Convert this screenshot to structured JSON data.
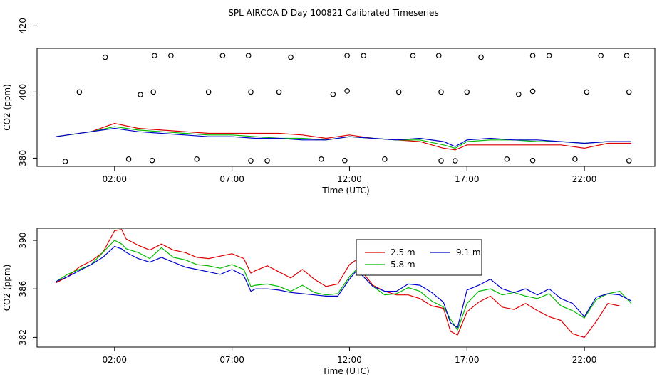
{
  "title": "SPL AIRCOA D  Day 100821  Calibrated Timeseries",
  "colors": {
    "red": "#dd0000",
    "green": "#00bb00",
    "blue": "#0000cc",
    "axis": "#000000"
  },
  "chart_data": [
    {
      "type": "scatter+line",
      "xlabel": "Time (UTC)",
      "ylabel": "CO2 (ppm)",
      "xlim": [
        -1.3,
        25.0
      ],
      "ylim": [
        377.5,
        413.2
      ],
      "x_ticks": [
        2,
        7,
        12,
        17,
        22
      ],
      "x_tick_labels": [
        "02:00",
        "07:00",
        "12:00",
        "17:00",
        "22:00"
      ],
      "y_ticks": [
        380,
        400,
        420
      ],
      "y_tick_labels": [
        "380",
        "400",
        "420"
      ],
      "calibration_points": [
        {
          "x": -0.1,
          "y": 379.0
        },
        {
          "x": 0.5,
          "y": 400.0
        },
        {
          "x": 1.6,
          "y": 410.5
        },
        {
          "x": 2.6,
          "y": 379.7
        },
        {
          "x": 3.1,
          "y": 399.2
        },
        {
          "x": 3.6,
          "y": 379.3
        },
        {
          "x": 3.65,
          "y": 400.0
        },
        {
          "x": 3.7,
          "y": 411.0
        },
        {
          "x": 4.4,
          "y": 411.0
        },
        {
          "x": 5.5,
          "y": 379.7
        },
        {
          "x": 6.0,
          "y": 400.0
        },
        {
          "x": 6.6,
          "y": 411.0
        },
        {
          "x": 7.7,
          "y": 411.0
        },
        {
          "x": 7.8,
          "y": 379.2
        },
        {
          "x": 7.8,
          "y": 400.0
        },
        {
          "x": 8.5,
          "y": 379.2
        },
        {
          "x": 9.0,
          "y": 400.0
        },
        {
          "x": 9.5,
          "y": 410.5
        },
        {
          "x": 10.8,
          "y": 379.7
        },
        {
          "x": 11.3,
          "y": 399.3
        },
        {
          "x": 11.8,
          "y": 379.3
        },
        {
          "x": 11.9,
          "y": 400.3
        },
        {
          "x": 11.9,
          "y": 411.0
        },
        {
          "x": 12.6,
          "y": 411.0
        },
        {
          "x": 13.5,
          "y": 379.7
        },
        {
          "x": 14.1,
          "y": 400.0
        },
        {
          "x": 14.7,
          "y": 411.0
        },
        {
          "x": 15.8,
          "y": 411.0
        },
        {
          "x": 15.9,
          "y": 379.2
        },
        {
          "x": 15.9,
          "y": 400.0
        },
        {
          "x": 16.5,
          "y": 379.2
        },
        {
          "x": 17.0,
          "y": 400.0
        },
        {
          "x": 17.6,
          "y": 410.5
        },
        {
          "x": 18.7,
          "y": 379.7
        },
        {
          "x": 19.2,
          "y": 399.3
        },
        {
          "x": 19.8,
          "y": 379.3
        },
        {
          "x": 19.8,
          "y": 400.2
        },
        {
          "x": 19.8,
          "y": 411.0
        },
        {
          "x": 20.5,
          "y": 411.0
        },
        {
          "x": 21.6,
          "y": 379.7
        },
        {
          "x": 22.1,
          "y": 400.0
        },
        {
          "x": 22.7,
          "y": 411.0
        },
        {
          "x": 23.8,
          "y": 411.0
        },
        {
          "x": 23.9,
          "y": 379.2
        },
        {
          "x": 23.9,
          "y": 400.0
        }
      ],
      "series": [
        {
          "color": "#dd0000",
          "x": [
            -0.5,
            0,
            1,
            2,
            3,
            4,
            5,
            6,
            7,
            8,
            9,
            10,
            11,
            12,
            13,
            14,
            15,
            16,
            16.5,
            17,
            18,
            19,
            20,
            21,
            22,
            23,
            24
          ],
          "y": [
            386.5,
            387,
            388,
            390.5,
            389,
            388.5,
            388,
            387.5,
            387.5,
            387.5,
            387.5,
            387,
            386,
            387,
            386,
            385.5,
            385,
            383,
            382.5,
            384,
            384,
            384,
            384,
            384,
            383,
            384.5,
            384.5
          ]
        },
        {
          "color": "#00bb00",
          "x": [
            -0.5,
            0,
            1,
            2,
            3,
            4,
            5,
            6,
            7,
            8,
            9,
            10,
            11,
            12,
            13,
            14,
            15,
            16,
            16.5,
            17,
            18,
            19,
            20,
            21,
            22,
            23,
            24
          ],
          "y": [
            386.5,
            387,
            388,
            389.5,
            388.5,
            388,
            387.5,
            387,
            387,
            386.5,
            386,
            386,
            385.5,
            386.5,
            386,
            385.5,
            385.5,
            384,
            383,
            385,
            385.5,
            385.5,
            385,
            385,
            384.5,
            385,
            385
          ]
        },
        {
          "color": "#0000cc",
          "x": [
            -0.5,
            0,
            1,
            2,
            3,
            4,
            5,
            6,
            7,
            8,
            9,
            10,
            11,
            12,
            13,
            14,
            15,
            16,
            16.5,
            17,
            18,
            19,
            20,
            21,
            22,
            23,
            24
          ],
          "y": [
            386.5,
            387,
            388,
            389,
            388,
            387.5,
            387,
            386.5,
            386.5,
            386,
            386,
            385.5,
            385.5,
            386.5,
            386,
            385.5,
            386,
            385,
            383.5,
            385.5,
            386,
            385.5,
            385.5,
            385,
            384.5,
            385,
            385
          ]
        }
      ]
    },
    {
      "type": "line",
      "xlabel": "Time (UTC)",
      "ylabel": "CO2 (ppm)",
      "xlim": [
        -1.3,
        25.0
      ],
      "ylim": [
        381.2,
        391.0
      ],
      "x_ticks": [
        2,
        7,
        12,
        17,
        22
      ],
      "x_tick_labels": [
        "02:00",
        "07:00",
        "12:00",
        "17:00",
        "22:00"
      ],
      "y_ticks": [
        382,
        386,
        390
      ],
      "y_tick_labels": [
        "382",
        "386",
        "390"
      ],
      "legend_position": "top-center",
      "series": [
        {
          "name": "2.5 m",
          "color": "#dd0000",
          "x": [
            -0.5,
            0,
            0.5,
            1,
            1.5,
            2,
            2.3,
            2.5,
            3,
            3.5,
            4,
            4.5,
            5,
            5.5,
            6,
            6.5,
            7,
            7.5,
            7.8,
            8,
            8.5,
            9,
            9.5,
            10,
            10.5,
            11,
            11.5,
            12,
            12.3,
            12.5,
            13,
            13.5,
            14,
            14.5,
            15,
            15.5,
            16,
            16.3,
            16.6,
            17,
            17.5,
            18,
            18.5,
            19,
            19.5,
            20,
            20.5,
            21,
            21.5,
            22,
            22.5,
            23,
            23.5
          ],
          "y": [
            386.5,
            387,
            387.8,
            388.3,
            389,
            390.8,
            390.9,
            390.1,
            389.6,
            389.2,
            389.7,
            389.2,
            389,
            388.6,
            388.5,
            388.7,
            388.9,
            388.5,
            387.3,
            387.5,
            387.9,
            387.4,
            386.9,
            387.6,
            386.8,
            386.2,
            386.4,
            388,
            388.4,
            387.5,
            386.3,
            385.8,
            385.5,
            385.5,
            385.2,
            384.6,
            384.4,
            382.5,
            382.2,
            384.1,
            384.9,
            385.4,
            384.5,
            384.3,
            384.8,
            384.2,
            383.7,
            383.4,
            382.3,
            382,
            383.3,
            384.8,
            384.6
          ]
        },
        {
          "name": "5.8 m",
          "color": "#00bb00",
          "x": [
            -0.5,
            0,
            0.5,
            1,
            1.5,
            2,
            2.3,
            2.5,
            3,
            3.5,
            4,
            4.5,
            5,
            5.5,
            6,
            6.5,
            7,
            7.5,
            7.8,
            8,
            8.5,
            9,
            9.5,
            10,
            10.5,
            11,
            11.5,
            12,
            12.3,
            12.5,
            13,
            13.5,
            14,
            14.5,
            15,
            15.5,
            16,
            16.3,
            16.6,
            17,
            17.5,
            18,
            18.5,
            19,
            19.5,
            20,
            20.5,
            21,
            21.5,
            22,
            22.5,
            23,
            23.5,
            24
          ],
          "y": [
            386.6,
            387.2,
            387.6,
            388,
            389,
            390,
            389.7,
            389.3,
            389,
            388.5,
            389.4,
            388.6,
            388.4,
            388,
            387.9,
            387.7,
            388,
            387.6,
            386.2,
            386.3,
            386.4,
            386.2,
            385.8,
            386.3,
            385.7,
            385.5,
            385.6,
            387,
            387.6,
            387.2,
            386.2,
            385.5,
            385.6,
            386.1,
            385.8,
            385,
            384.5,
            383.5,
            382.6,
            384.8,
            385.8,
            386,
            385.5,
            385.7,
            385.4,
            385.2,
            385.6,
            384.6,
            384.2,
            383.6,
            385.1,
            385.6,
            385.8,
            384.8
          ]
        },
        {
          "name": "9.1 m",
          "color": "#0000cc",
          "x": [
            -0.5,
            0,
            0.5,
            1,
            1.5,
            2,
            2.3,
            2.5,
            3,
            3.5,
            4,
            4.5,
            5,
            5.5,
            6,
            6.5,
            7,
            7.5,
            7.8,
            8,
            8.5,
            9,
            9.5,
            10,
            10.5,
            11,
            11.5,
            12,
            12.3,
            12.5,
            13,
            13.5,
            14,
            14.5,
            15,
            15.5,
            16,
            16.3,
            16.6,
            17,
            17.5,
            18,
            18.5,
            19,
            19.5,
            20,
            20.5,
            21,
            21.5,
            22,
            22.5,
            23,
            23.5,
            24
          ],
          "y": [
            386.6,
            387,
            387.5,
            388,
            388.6,
            389.5,
            389.3,
            389,
            388.5,
            388.2,
            388.6,
            388.2,
            387.8,
            387.6,
            387.4,
            387.2,
            387.6,
            387.1,
            385.8,
            386,
            386,
            385.9,
            385.7,
            385.6,
            385.5,
            385.4,
            385.4,
            386.8,
            387.5,
            387.2,
            386.2,
            385.8,
            385.8,
            386.4,
            386.3,
            385.7,
            384.9,
            383.2,
            382.8,
            385.9,
            386.3,
            386.8,
            386,
            385.7,
            386,
            385.5,
            386,
            385.2,
            384.8,
            383.7,
            385.3,
            385.6,
            385.5,
            385
          ]
        }
      ]
    }
  ]
}
